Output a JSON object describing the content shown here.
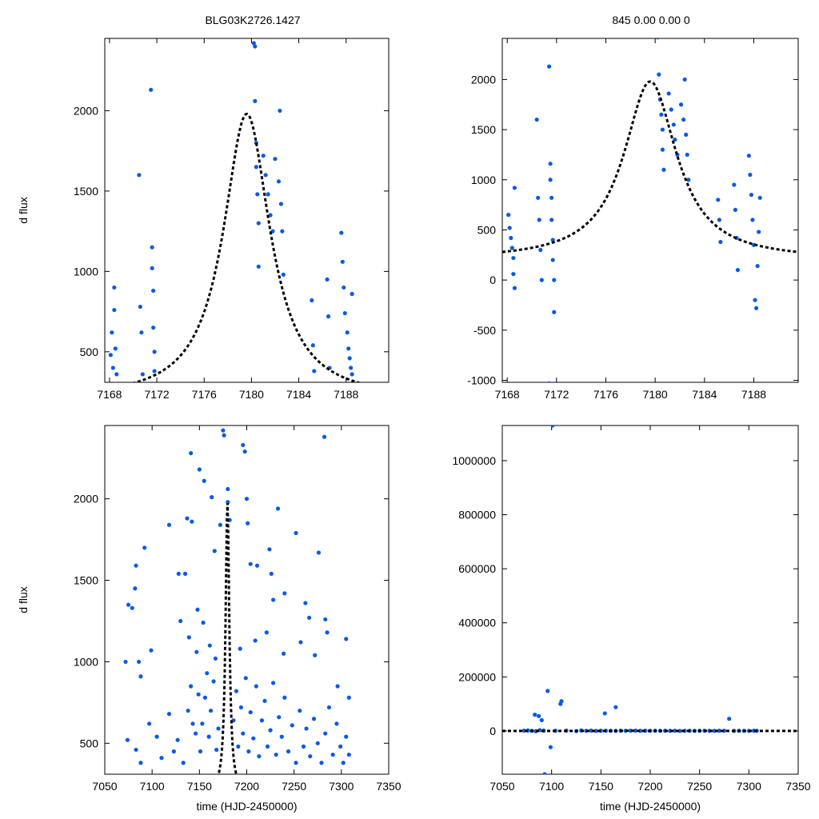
{
  "header": {
    "title_left": "BLG03K2726.1427",
    "title_right": "845  0.00  0.00  0"
  },
  "colors": {
    "points": "#0a5ae6",
    "model": "#000000"
  },
  "chart_data": [
    {
      "id": "top_left",
      "type": "scatter",
      "title": "BLG03K2726.1427",
      "xlabel": "",
      "ylabel": "d flux",
      "xlim": [
        7167.6,
        7191.6
      ],
      "ylim": [
        310,
        2450
      ],
      "xticks": [
        7168,
        7172,
        7176,
        7180,
        7184,
        7188
      ],
      "yticks": [
        500,
        1000,
        1500,
        2000
      ],
      "model": {
        "t0": 7179.6,
        "peak": 1980,
        "base": 200,
        "width": 2.4
      },
      "points": [
        [
          7168.1,
          480
        ],
        [
          7168.2,
          620
        ],
        [
          7168.3,
          400
        ],
        [
          7168.4,
          900
        ],
        [
          7168.4,
          760
        ],
        [
          7168.5,
          520
        ],
        [
          7168.6,
          360
        ],
        [
          7170.5,
          1600
        ],
        [
          7170.6,
          780
        ],
        [
          7170.7,
          620
        ],
        [
          7170.8,
          360
        ],
        [
          7171.5,
          2130
        ],
        [
          7171.6,
          1150
        ],
        [
          7171.6,
          1020
        ],
        [
          7171.7,
          880
        ],
        [
          7171.7,
          650
        ],
        [
          7171.8,
          500
        ],
        [
          7171.8,
          380
        ],
        [
          7180.2,
          2420
        ],
        [
          7180.3,
          2400
        ],
        [
          7180.3,
          2060
        ],
        [
          7180.4,
          1800
        ],
        [
          7180.4,
          1650
        ],
        [
          7180.5,
          1480
        ],
        [
          7180.6,
          1300
        ],
        [
          7180.6,
          1030
        ],
        [
          7181.0,
          1720
        ],
        [
          7181.2,
          1600
        ],
        [
          7181.4,
          1480
        ],
        [
          7181.6,
          1350
        ],
        [
          7181.8,
          1250
        ],
        [
          7182.0,
          1700
        ],
        [
          7182.3,
          1560
        ],
        [
          7182.4,
          2000
        ],
        [
          7182.5,
          1420
        ],
        [
          7182.6,
          1250
        ],
        [
          7182.7,
          980
        ],
        [
          7185.1,
          820
        ],
        [
          7185.2,
          540
        ],
        [
          7185.3,
          380
        ],
        [
          7186.4,
          950
        ],
        [
          7186.5,
          720
        ],
        [
          7186.6,
          400
        ],
        [
          7187.6,
          1240
        ],
        [
          7187.7,
          1060
        ],
        [
          7187.8,
          900
        ],
        [
          7187.9,
          740
        ],
        [
          7188.1,
          620
        ],
        [
          7188.2,
          520
        ],
        [
          7188.3,
          460
        ],
        [
          7188.4,
          400
        ],
        [
          7188.5,
          860
        ],
        [
          7188.5,
          360
        ]
      ]
    },
    {
      "id": "top_right",
      "type": "scatter",
      "title": "845  0.00  0.00  0",
      "xlabel": "",
      "ylabel": "",
      "xlim": [
        7167.6,
        7191.6
      ],
      "ylim": [
        -1020,
        2410
      ],
      "xticks": [
        7168,
        7172,
        7176,
        7180,
        7184,
        7188
      ],
      "yticks": [
        -1000,
        -500,
        0,
        500,
        1000,
        1500,
        2000
      ],
      "model": {
        "t0": 7179.6,
        "peak": 1980,
        "base": 200,
        "width": 2.6
      },
      "points": [
        [
          7168.1,
          650
        ],
        [
          7168.2,
          520
        ],
        [
          7168.3,
          420
        ],
        [
          7168.4,
          320
        ],
        [
          7168.5,
          220
        ],
        [
          7168.5,
          60
        ],
        [
          7168.6,
          -80
        ],
        [
          7168.6,
          920
        ],
        [
          7170.4,
          1600
        ],
        [
          7170.5,
          820
        ],
        [
          7170.6,
          600
        ],
        [
          7170.7,
          300
        ],
        [
          7170.8,
          0
        ],
        [
          7171.4,
          2130
        ],
        [
          7171.5,
          1160
        ],
        [
          7171.5,
          1000
        ],
        [
          7171.6,
          820
        ],
        [
          7171.6,
          600
        ],
        [
          7171.7,
          400
        ],
        [
          7171.7,
          200
        ],
        [
          7171.8,
          0
        ],
        [
          7171.8,
          -320
        ],
        [
          7171.4,
          -1030
        ],
        [
          7180.2,
          2420
        ],
        [
          7180.3,
          2050
        ],
        [
          7180.4,
          1800
        ],
        [
          7180.5,
          1650
        ],
        [
          7180.6,
          1500
        ],
        [
          7180.6,
          1300
        ],
        [
          7180.7,
          1100
        ],
        [
          7181.1,
          1860
        ],
        [
          7181.3,
          1700
        ],
        [
          7181.5,
          1550
        ],
        [
          7181.6,
          1400
        ],
        [
          7181.8,
          1250
        ],
        [
          7182.1,
          1750
        ],
        [
          7182.3,
          1600
        ],
        [
          7182.4,
          2000
        ],
        [
          7182.5,
          1450
        ],
        [
          7182.6,
          1250
        ],
        [
          7182.7,
          1000
        ],
        [
          7185.1,
          800
        ],
        [
          7185.2,
          600
        ],
        [
          7185.3,
          380
        ],
        [
          7186.4,
          950
        ],
        [
          7186.5,
          700
        ],
        [
          7186.6,
          420
        ],
        [
          7186.7,
          100
        ],
        [
          7187.6,
          1240
        ],
        [
          7187.7,
          1050
        ],
        [
          7187.8,
          850
        ],
        [
          7187.9,
          600
        ],
        [
          7188.0,
          350
        ],
        [
          7188.1,
          -200
        ],
        [
          7188.2,
          -280
        ],
        [
          7188.3,
          140
        ],
        [
          7188.4,
          480
        ],
        [
          7188.5,
          820
        ]
      ]
    },
    {
      "id": "bottom_left",
      "type": "scatter",
      "title": "",
      "xlabel": "time (HJD-2450000)",
      "ylabel": "d flux",
      "xlim": [
        7050,
        7350
      ],
      "ylim": [
        310,
        2450
      ],
      "xticks": [
        7050,
        7100,
        7150,
        7200,
        7250,
        7300,
        7350
      ],
      "yticks": [
        500,
        1000,
        1500,
        2000
      ],
      "model": {
        "t0": 7179.6,
        "peak": 1980,
        "base": 200,
        "width": 2.4
      },
      "points": [
        [
          7072,
          1000
        ],
        [
          7075,
          1350
        ],
        [
          7079,
          1330
        ],
        [
          7082,
          1450
        ],
        [
          7083,
          1590
        ],
        [
          7086,
          1000
        ],
        [
          7088,
          910
        ],
        [
          7092,
          1700
        ],
        [
          7099,
          1070
        ],
        [
          7118,
          1840
        ],
        [
          7128,
          1540
        ],
        [
          7130,
          1250
        ],
        [
          7135,
          1540
        ],
        [
          7137,
          1880
        ],
        [
          7141,
          2280
        ],
        [
          7142,
          1860
        ],
        [
          7148,
          1320
        ],
        [
          7150,
          2180
        ],
        [
          7155,
          2110
        ],
        [
          7163,
          2010
        ],
        [
          7166,
          1680
        ],
        [
          7172,
          1840
        ],
        [
          7175,
          2420
        ],
        [
          7176,
          2390
        ],
        [
          7180,
          2060
        ],
        [
          7180,
          1980
        ],
        [
          7182,
          1870
        ],
        [
          7196,
          2330
        ],
        [
          7198,
          2290
        ],
        [
          7200,
          2000
        ],
        [
          7201,
          1850
        ],
        [
          7204,
          1600
        ],
        [
          7211,
          1590
        ],
        [
          7224,
          1690
        ],
        [
          7226,
          1540
        ],
        [
          7228,
          1380
        ],
        [
          7233,
          1940
        ],
        [
          7240,
          1420
        ],
        [
          7252,
          1790
        ],
        [
          7262,
          1360
        ],
        [
          7266,
          1270
        ],
        [
          7276,
          1670
        ],
        [
          7282,
          2380
        ],
        [
          7283,
          1260
        ],
        [
          7296,
          850
        ],
        [
          7305,
          1140
        ],
        [
          7308,
          780
        ],
        [
          7074,
          520
        ],
        [
          7083,
          460
        ],
        [
          7088,
          380
        ],
        [
          7097,
          620
        ],
        [
          7105,
          540
        ],
        [
          7110,
          410
        ],
        [
          7118,
          680
        ],
        [
          7123,
          450
        ],
        [
          7127,
          520
        ],
        [
          7133,
          380
        ],
        [
          7138,
          700
        ],
        [
          7141,
          850
        ],
        [
          7143,
          620
        ],
        [
          7146,
          560
        ],
        [
          7149,
          800
        ],
        [
          7151,
          450
        ],
        [
          7153,
          620
        ],
        [
          7156,
          780
        ],
        [
          7158,
          930
        ],
        [
          7160,
          540
        ],
        [
          7162,
          700
        ],
        [
          7165,
          880
        ],
        [
          7168,
          460
        ],
        [
          7170,
          590
        ],
        [
          7186,
          640
        ],
        [
          7189,
          820
        ],
        [
          7191,
          480
        ],
        [
          7194,
          720
        ],
        [
          7196,
          560
        ],
        [
          7199,
          900
        ],
        [
          7202,
          450
        ],
        [
          7204,
          690
        ],
        [
          7207,
          530
        ],
        [
          7210,
          850
        ],
        [
          7213,
          420
        ],
        [
          7216,
          640
        ],
        [
          7219,
          760
        ],
        [
          7222,
          480
        ],
        [
          7225,
          580
        ],
        [
          7228,
          870
        ],
        [
          7231,
          430
        ],
        [
          7234,
          660
        ],
        [
          7237,
          540
        ],
        [
          7240,
          780
        ],
        [
          7244,
          450
        ],
        [
          7248,
          610
        ],
        [
          7252,
          380
        ],
        [
          7256,
          700
        ],
        [
          7260,
          480
        ],
        [
          7263,
          590
        ],
        [
          7267,
          420
        ],
        [
          7271,
          650
        ],
        [
          7275,
          500
        ],
        [
          7279,
          380
        ],
        [
          7283,
          560
        ],
        [
          7287,
          720
        ],
        [
          7291,
          430
        ],
        [
          7295,
          620
        ],
        [
          7299,
          480
        ],
        [
          7302,
          380
        ],
        [
          7305,
          540
        ],
        [
          7308,
          430
        ],
        [
          7139,
          1150
        ],
        [
          7147,
          1060
        ],
        [
          7154,
          1240
        ],
        [
          7161,
          1100
        ],
        [
          7167,
          1020
        ],
        [
          7193,
          1080
        ],
        [
          7209,
          1130
        ],
        [
          7221,
          1180
        ],
        [
          7239,
          1050
        ],
        [
          7257,
          1120
        ],
        [
          7272,
          1040
        ],
        [
          7285,
          1180
        ]
      ]
    },
    {
      "id": "bottom_right",
      "type": "scatter",
      "title": "",
      "xlabel": "time (HJD-2450000)",
      "ylabel": "",
      "xlim": [
        7050,
        7350
      ],
      "ylim": [
        -160000,
        1130000
      ],
      "xticks": [
        7050,
        7100,
        7150,
        7200,
        7250,
        7300,
        7350
      ],
      "yticks": [
        0,
        200000,
        400000,
        600000,
        800000,
        1000000
      ],
      "model": {
        "t0": 7179.6,
        "peak": 1980,
        "base": 200,
        "width": 2.4
      },
      "points": [
        [
          7101,
          1130000
        ],
        [
          7083,
          60000
        ],
        [
          7087,
          55000
        ],
        [
          7090,
          40000
        ],
        [
          7093,
          -160000
        ],
        [
          7096,
          148000
        ],
        [
          7099,
          -60000
        ],
        [
          7109,
          100000
        ],
        [
          7110,
          110000
        ],
        [
          7154,
          65000
        ],
        [
          7165,
          88000
        ],
        [
          7280,
          45000
        ],
        [
          7072,
          1000
        ],
        [
          7076,
          2000
        ],
        [
          7080,
          500
        ],
        [
          7084,
          -1000
        ],
        [
          7088,
          3000
        ],
        [
          7092,
          1500
        ],
        [
          7104,
          800
        ],
        [
          7115,
          1200
        ],
        [
          7125,
          -500
        ],
        [
          7130,
          2000
        ],
        [
          7135,
          600
        ],
        [
          7140,
          1500
        ],
        [
          7145,
          300
        ],
        [
          7150,
          900
        ],
        [
          7155,
          1100
        ],
        [
          7160,
          700
        ],
        [
          7165,
          400
        ],
        [
          7170,
          1300
        ],
        [
          7175,
          600
        ],
        [
          7180,
          800
        ],
        [
          7185,
          1200
        ],
        [
          7190,
          500
        ],
        [
          7195,
          900
        ],
        [
          7200,
          700
        ],
        [
          7205,
          1000
        ],
        [
          7210,
          600
        ],
        [
          7215,
          800
        ],
        [
          7220,
          400
        ],
        [
          7225,
          1100
        ],
        [
          7230,
          300
        ],
        [
          7235,
          700
        ],
        [
          7240,
          900
        ],
        [
          7245,
          500
        ],
        [
          7250,
          800
        ],
        [
          7255,
          1000
        ],
        [
          7260,
          600
        ],
        [
          7265,
          400
        ],
        [
          7270,
          900
        ],
        [
          7275,
          700
        ],
        [
          7285,
          500
        ],
        [
          7290,
          800
        ],
        [
          7295,
          600
        ],
        [
          7300,
          400
        ],
        [
          7305,
          900
        ],
        [
          7308,
          700
        ]
      ]
    }
  ]
}
